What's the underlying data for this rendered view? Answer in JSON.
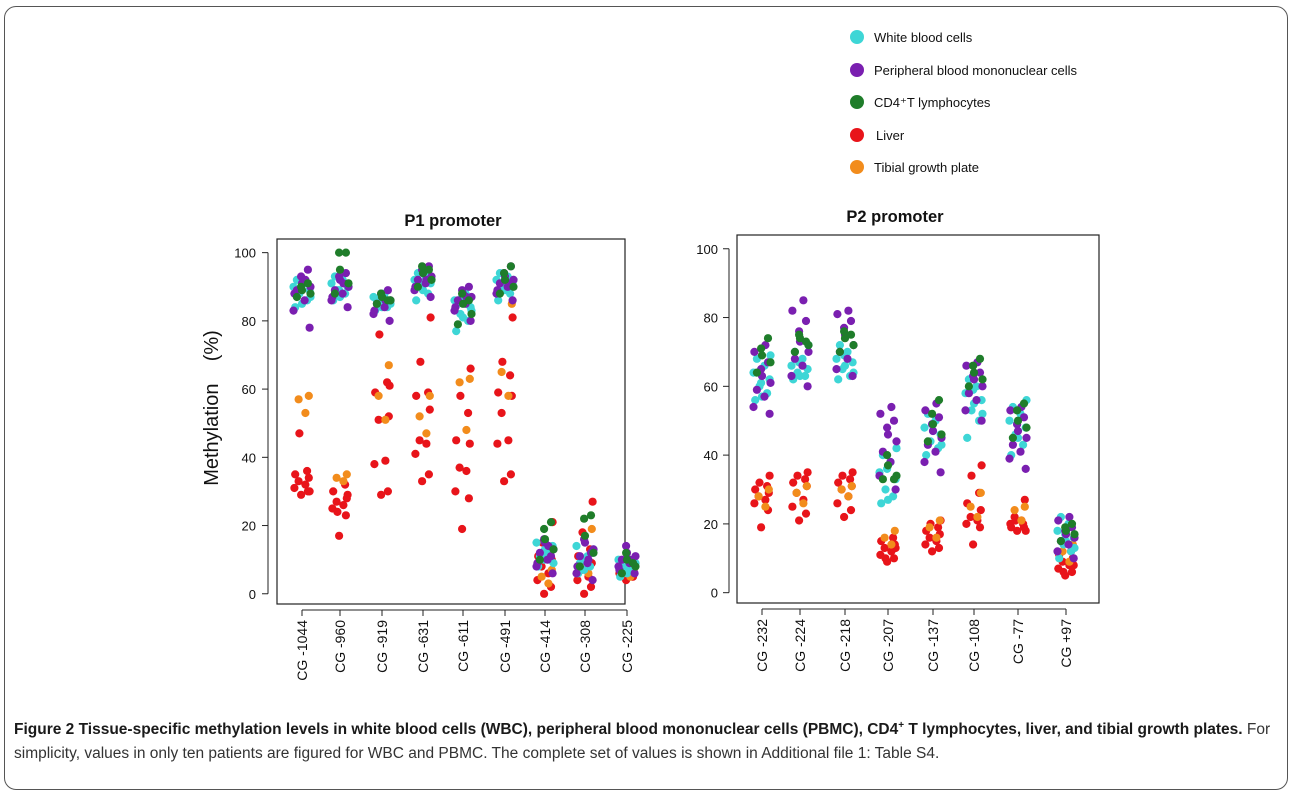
{
  "legend": [
    {
      "label": "White blood cells",
      "color": "#3ed6d6"
    },
    {
      "label": "Peripheral blood mononuclear cells",
      "color": "#7a1fb0"
    },
    {
      "label": "CD4⁺T lymphocytes",
      "color": "#1f7d2a"
    },
    {
      "label": "Liver",
      "color": "#e8141a"
    },
    {
      "label": "Tibial growth plate",
      "color": "#f28c1c"
    }
  ],
  "y_axis_title": "Methylation    (%)",
  "caption": {
    "figure_label": "Figure 2",
    "title_a": " Tissue-specific methylation levels in white blood cells (WBC), peripheral blood mononuclear cells (PBMC), CD4",
    "title_sup": "+",
    "title_b": " T lymphocytes, liver, and tibial growth plates.",
    "body": " For simplicity, values in only ten patients are figured for WBC and PBMC. The complete set of values is shown in Additional file 1: Table S4."
  },
  "chart_data": [
    {
      "type": "scatter",
      "title": "P1 promoter",
      "xlabel": "",
      "ylabel": "Methylation    (%)",
      "ylim": [
        -3,
        104
      ],
      "yticks": [
        0,
        20,
        40,
        60,
        80,
        100
      ],
      "grid": false,
      "categories": [
        "CG -1044",
        "CG -960",
        "CG -919",
        "CG -631",
        "CG -611",
        "CG -491",
        "CG -414",
        "CG -308",
        "CG -225"
      ],
      "series": [
        {
          "name": "White blood cells",
          "color": "#3ed6d6",
          "values": [
            [
              84,
              86,
              88,
              89,
              90,
              91,
              92,
              87,
              85,
              90
            ],
            [
              86,
              88,
              89,
              90,
              91,
              92,
              93,
              90,
              87,
              89
            ],
            [
              83,
              84,
              85,
              86,
              87,
              88,
              86,
              85,
              84,
              87
            ],
            [
              86,
              88,
              90,
              91,
              92,
              93,
              94,
              92,
              89,
              91
            ],
            [
              77,
              80,
              82,
              84,
              86,
              88,
              85,
              83,
              81,
              87
            ],
            [
              86,
              88,
              90,
              91,
              92,
              93,
              94,
              92,
              89,
              91
            ],
            [
              8,
              10,
              12,
              14,
              15,
              12,
              11,
              9,
              13,
              10
            ],
            [
              6,
              8,
              10,
              12,
              14,
              11,
              9,
              13,
              10,
              7
            ],
            [
              5,
              7,
              8,
              9,
              10,
              8,
              7,
              9,
              6,
              8
            ]
          ]
        },
        {
          "name": "Peripheral blood mononuclear cells",
          "color": "#7a1fb0",
          "values": [
            [
              78,
              83,
              86,
              89,
              90,
              91,
              93,
              95,
              88,
              92
            ],
            [
              84,
              86,
              88,
              89,
              90,
              92,
              93,
              94,
              87,
              91
            ],
            [
              80,
              82,
              84,
              85,
              86,
              87,
              88,
              89,
              83,
              86
            ],
            [
              87,
              89,
              91,
              92,
              93,
              94,
              95,
              96,
              90,
              92
            ],
            [
              80,
              83,
              85,
              86,
              87,
              88,
              89,
              90,
              84,
              87
            ],
            [
              86,
              88,
              90,
              91,
              92,
              93,
              94,
              96,
              89,
              91
            ],
            [
              6,
              8,
              10,
              12,
              13,
              15,
              16,
              11,
              9,
              14
            ],
            [
              4,
              6,
              9,
              11,
              13,
              15,
              16,
              12,
              8,
              10
            ],
            [
              6,
              8,
              9,
              10,
              11,
              12,
              14,
              9,
              7,
              10
            ]
          ]
        },
        {
          "name": "CD4⁺T lymphocytes",
          "color": "#1f7d2a",
          "values": [
            [
              87,
              88,
              89,
              90,
              91
            ],
            [
              88,
              91,
              95,
              100,
              100
            ],
            [
              85,
              86,
              87,
              88,
              86
            ],
            [
              90,
              92,
              94,
              96,
              95
            ],
            [
              79,
              82,
              85,
              88,
              86
            ],
            [
              88,
              90,
              92,
              94,
              96
            ],
            [
              10,
              13,
              16,
              19,
              21
            ],
            [
              8,
              12,
              17,
              22,
              23
            ],
            [
              6,
              8,
              10,
              12,
              9
            ]
          ]
        },
        {
          "name": "Liver",
          "color": "#e8141a",
          "values": [
            [
              29,
              30,
              31,
              32,
              33,
              34,
              35,
              36,
              47,
              30
            ],
            [
              17,
              23,
              25,
              26,
              27,
              28,
              30,
              32,
              24,
              29
            ],
            [
              29,
              30,
              38,
              39,
              51,
              52,
              59,
              62,
              76,
              61
            ],
            [
              33,
              35,
              41,
              44,
              45,
              54,
              58,
              59,
              68,
              81
            ],
            [
              19,
              28,
              30,
              36,
              37,
              44,
              45,
              53,
              58,
              66
            ],
            [
              33,
              35,
              44,
              45,
              53,
              58,
              59,
              64,
              68,
              81
            ],
            [
              0,
              2,
              4,
              6,
              8,
              10,
              11,
              13,
              15,
              21
            ],
            [
              0,
              2,
              4,
              5,
              7,
              9,
              11,
              13,
              18,
              27
            ],
            [
              4,
              5,
              6,
              7,
              8,
              9,
              6,
              5,
              7,
              8
            ]
          ]
        },
        {
          "name": "Tibial growth plate",
          "color": "#f28c1c",
          "values": [
            [
              53,
              57,
              58
            ],
            [
              33,
              34,
              35
            ],
            [
              51,
              58,
              67
            ],
            [
              47,
              52,
              58
            ],
            [
              48,
              62,
              63
            ],
            [
              58,
              65,
              85
            ],
            [
              3,
              5,
              7
            ],
            [
              6,
              10,
              19
            ],
            [
              5,
              6,
              7
            ]
          ]
        }
      ]
    },
    {
      "type": "scatter",
      "title": "P2 promoter",
      "xlabel": "",
      "ylabel": "",
      "ylim": [
        -3,
        104
      ],
      "yticks": [
        0,
        20,
        40,
        60,
        80,
        100
      ],
      "grid": false,
      "categories": [
        "CG -232",
        "CG -224",
        "CG -218",
        "CG -207",
        "CG -137",
        "CG -108",
        "CG -77",
        "CG +97"
      ],
      "series": [
        {
          "name": "White blood cells",
          "color": "#3ed6d6",
          "values": [
            [
              56,
              58,
              60,
              62,
              64,
              66,
              68,
              69,
              57,
              61
            ],
            [
              62,
              63,
              64,
              65,
              66,
              68,
              70,
              72,
              63,
              67
            ],
            [
              62,
              63,
              65,
              67,
              68,
              70,
              72,
              64,
              66,
              69
            ],
            [
              26,
              28,
              30,
              33,
              35,
              38,
              40,
              42,
              27,
              36
            ],
            [
              40,
              42,
              44,
              46,
              48,
              50,
              52,
              43,
              47,
              49
            ],
            [
              45,
              50,
              53,
              56,
              58,
              60,
              62,
              52,
              55,
              59
            ],
            [
              40,
              43,
              46,
              48,
              50,
              52,
              54,
              56,
              45,
              49
            ],
            [
              10,
              12,
              14,
              16,
              18,
              20,
              22,
              13,
              15,
              17
            ]
          ]
        },
        {
          "name": "Peripheral blood mononuclear cells",
          "color": "#7a1fb0",
          "values": [
            [
              52,
              54,
              57,
              59,
              61,
              63,
              65,
              67,
              70,
              72
            ],
            [
              60,
              63,
              66,
              68,
              70,
              73,
              76,
              79,
              82,
              85
            ],
            [
              63,
              65,
              68,
              70,
              72,
              75,
              77,
              79,
              81,
              82
            ],
            [
              30,
              34,
              38,
              41,
              44,
              46,
              48,
              50,
              52,
              54
            ],
            [
              35,
              38,
              41,
              43,
              45,
              47,
              49,
              51,
              53,
              55
            ],
            [
              50,
              53,
              56,
              58,
              60,
              62,
              63,
              64,
              66,
              67
            ],
            [
              36,
              39,
              41,
              43,
              45,
              47,
              49,
              51,
              53,
              54
            ],
            [
              10,
              12,
              14,
              15,
              16,
              17,
              18,
              19,
              21,
              22
            ]
          ]
        },
        {
          "name": "CD4⁺T lymphocytes",
          "color": "#1f7d2a",
          "values": [
            [
              64,
              67,
              69,
              71,
              74
            ],
            [
              70,
              72,
              74,
              75,
              73
            ],
            [
              70,
              72,
              74,
              76,
              75
            ],
            [
              33,
              34,
              37,
              40,
              33
            ],
            [
              44,
              46,
              49,
              52,
              56
            ],
            [
              60,
              62,
              64,
              66,
              68
            ],
            [
              45,
              48,
              50,
              53,
              55
            ],
            [
              15,
              17,
              18,
              19,
              20
            ]
          ]
        },
        {
          "name": "Liver",
          "color": "#e8141a",
          "values": [
            [
              19,
              24,
              26,
              27,
              28,
              29,
              30,
              31,
              32,
              34
            ],
            [
              21,
              23,
              25,
              27,
              29,
              31,
              32,
              33,
              34,
              35
            ],
            [
              22,
              24,
              26,
              28,
              30,
              31,
              32,
              33,
              34,
              35
            ],
            [
              9,
              10,
              11,
              12,
              13,
              14,
              15,
              16,
              10,
              13
            ],
            [
              12,
              13,
              14,
              15,
              16,
              17,
              18,
              19,
              20,
              21
            ],
            [
              14,
              19,
              20,
              21,
              22,
              24,
              26,
              29,
              34,
              37
            ],
            [
              18,
              19,
              20,
              21,
              22,
              27,
              19,
              20,
              21,
              18
            ],
            [
              5,
              6,
              7,
              8,
              9,
              10,
              11,
              12,
              6,
              8
            ]
          ]
        },
        {
          "name": "Tibial growth plate",
          "color": "#f28c1c",
          "values": [
            [
              25,
              28,
              30
            ],
            [
              26,
              29,
              31
            ],
            [
              28,
              30,
              31
            ],
            [
              14,
              16,
              18
            ],
            [
              16,
              19,
              21
            ],
            [
              22,
              25,
              29
            ],
            [
              21,
              24,
              25
            ],
            [
              9,
              12,
              14
            ]
          ]
        }
      ]
    }
  ]
}
